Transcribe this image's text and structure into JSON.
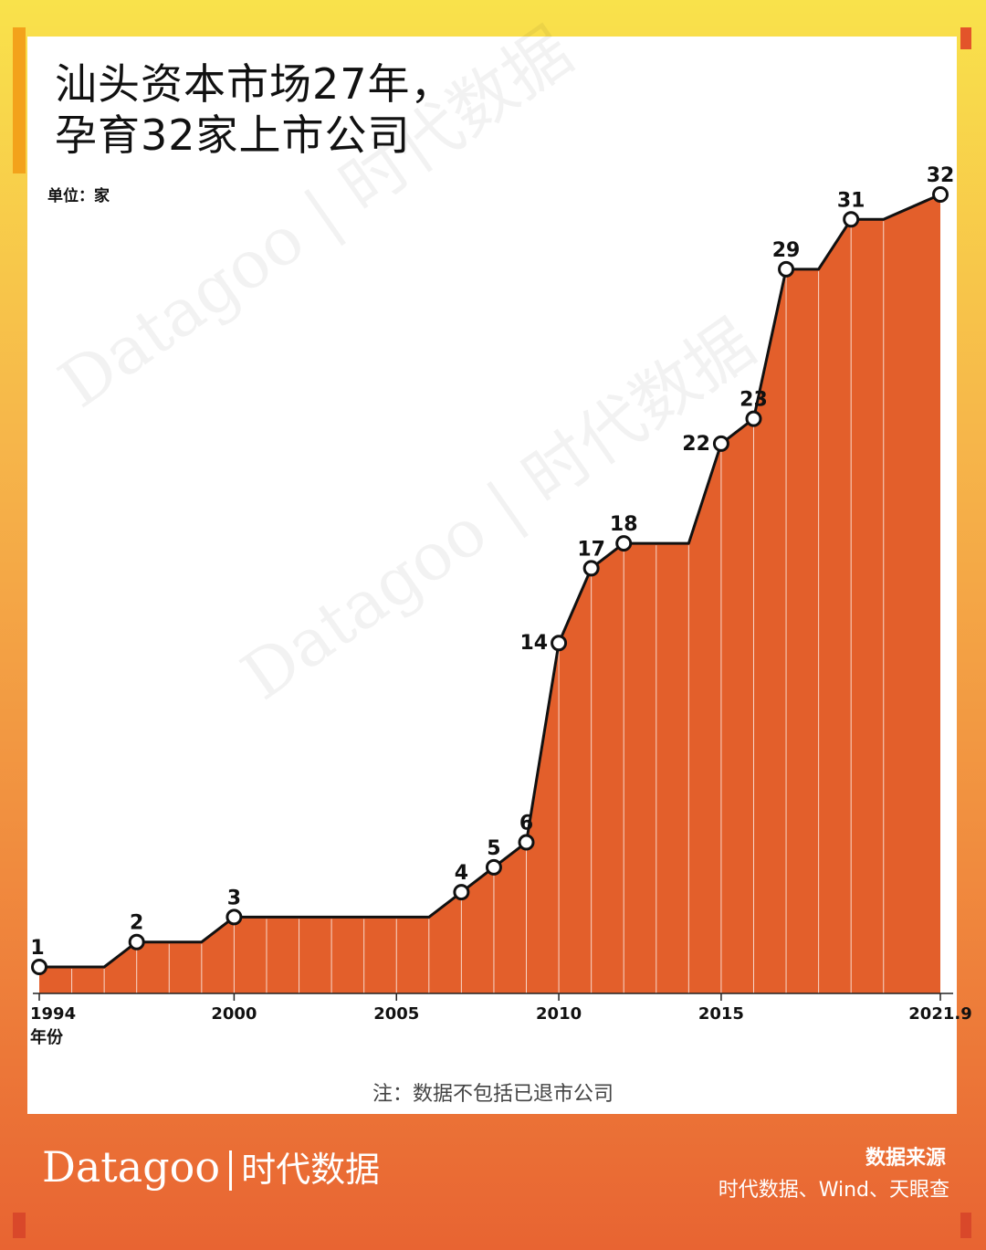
{
  "title_line1": "汕头资本市场27年，",
  "title_line2": "孕育32家上市公司",
  "unit_label": "单位：家",
  "watermark": "Datagoo | 时代数据",
  "note": "注：数据不包括已退市公司",
  "brand": {
    "latin": "Datagoo",
    "chinese": "时代数据"
  },
  "source": {
    "title": "数据来源",
    "body": "时代数据、Wind、天眼查"
  },
  "colors": {
    "area": "#e35f2b",
    "line": "#111111",
    "marker_fill": "#ffffff"
  },
  "chart_data": {
    "type": "area",
    "xlabel": "年份",
    "xlim": [
      1994,
      2021.75
    ],
    "ylim": [
      0,
      32
    ],
    "x_ticks": [
      {
        "x": 1994,
        "label": "1994"
      },
      {
        "x": 2000,
        "label": "2000"
      },
      {
        "x": 2005,
        "label": "2005"
      },
      {
        "x": 2010,
        "label": "2010"
      },
      {
        "x": 2015,
        "label": "2015"
      },
      {
        "x": 2021.75,
        "label": "2021.9"
      }
    ],
    "points": [
      {
        "x": 1994,
        "y": 1,
        "label": "1"
      },
      {
        "x": 1995,
        "y": 1
      },
      {
        "x": 1996,
        "y": 1
      },
      {
        "x": 1997,
        "y": 2,
        "label": "2"
      },
      {
        "x": 1998,
        "y": 2
      },
      {
        "x": 1999,
        "y": 2
      },
      {
        "x": 2000,
        "y": 3,
        "label": "3"
      },
      {
        "x": 2001,
        "y": 3
      },
      {
        "x": 2002,
        "y": 3
      },
      {
        "x": 2003,
        "y": 3
      },
      {
        "x": 2004,
        "y": 3
      },
      {
        "x": 2005,
        "y": 3
      },
      {
        "x": 2006,
        "y": 3
      },
      {
        "x": 2007,
        "y": 4,
        "label": "4"
      },
      {
        "x": 2008,
        "y": 5,
        "label": "5"
      },
      {
        "x": 2009,
        "y": 6,
        "label": "6"
      },
      {
        "x": 2010,
        "y": 14,
        "label": "14"
      },
      {
        "x": 2011,
        "y": 17,
        "label": "17"
      },
      {
        "x": 2012,
        "y": 18,
        "label": "18"
      },
      {
        "x": 2013,
        "y": 18
      },
      {
        "x": 2014,
        "y": 18
      },
      {
        "x": 2015,
        "y": 22,
        "label": "22"
      },
      {
        "x": 2016,
        "y": 23,
        "label": "23"
      },
      {
        "x": 2017,
        "y": 29,
        "label": "29"
      },
      {
        "x": 2018,
        "y": 29
      },
      {
        "x": 2019,
        "y": 31,
        "label": "31"
      },
      {
        "x": 2020,
        "y": 31
      },
      {
        "x": 2021.75,
        "y": 32,
        "label": "32"
      }
    ]
  }
}
